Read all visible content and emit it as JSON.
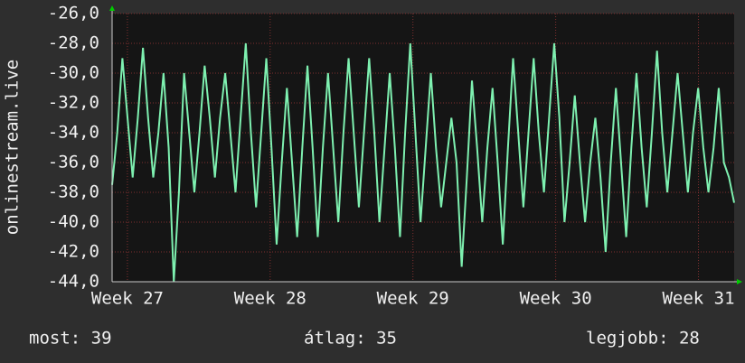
{
  "chart_data": {
    "type": "line",
    "y_label": "onlinestream.live",
    "ylim": [
      -44,
      -26
    ],
    "yticks": [
      {
        "value": -44,
        "label": "-44,0"
      },
      {
        "value": -42,
        "label": "-42,0"
      },
      {
        "value": -40,
        "label": "-40,0"
      },
      {
        "value": -38,
        "label": "-38,0"
      },
      {
        "value": -36,
        "label": "-36,0"
      },
      {
        "value": -34,
        "label": "-34,0"
      },
      {
        "value": -32,
        "label": "-32,0"
      },
      {
        "value": -30,
        "label": "-30,0"
      },
      {
        "value": -28,
        "label": "-28,0"
      },
      {
        "value": -26,
        "label": "-26,0"
      }
    ],
    "xlim": [
      0,
      122
    ],
    "xticks": [
      {
        "value": 3,
        "label": "Week 27"
      },
      {
        "value": 31,
        "label": "Week 28"
      },
      {
        "value": 59,
        "label": "Week 29"
      },
      {
        "value": 87,
        "label": "Week 30"
      },
      {
        "value": 115,
        "label": "Week 31"
      }
    ],
    "grid": true,
    "color": "#7ef0b0",
    "values": [
      -37.5,
      -34,
      -29,
      -33,
      -37,
      -33,
      -28.3,
      -33,
      -37,
      -34,
      -30,
      -35,
      -44,
      -38,
      -30,
      -34,
      -38,
      -34,
      -29.5,
      -33,
      -37,
      -33,
      -30,
      -34,
      -38,
      -33,
      -28,
      -34,
      -39,
      -34,
      -29,
      -35,
      -41.5,
      -36,
      -31,
      -36,
      -41,
      -35,
      -29.5,
      -35,
      -41,
      -35,
      -30,
      -35,
      -40,
      -34,
      -29,
      -34,
      -39,
      -34,
      -29,
      -34,
      -40,
      -35,
      -30,
      -35,
      -41,
      -34,
      -28,
      -34,
      -40,
      -35,
      -30,
      -35,
      -39,
      -36,
      -33,
      -36,
      -43,
      -37,
      -30.5,
      -35,
      -40,
      -35,
      -31,
      -36,
      -41.5,
      -35,
      -29,
      -34,
      -39,
      -34,
      -29,
      -34,
      -38,
      -33,
      -28,
      -33,
      -40,
      -36,
      -31.5,
      -36,
      -40,
      -36,
      -33,
      -37,
      -42,
      -36,
      -31,
      -36,
      -41,
      -35,
      -30,
      -35,
      -39,
      -34,
      -28.5,
      -34,
      -38,
      -34,
      -30,
      -34,
      -38,
      -34,
      -31,
      -35,
      -38,
      -35,
      -31,
      -36,
      -37,
      -38.7
    ],
    "footer": [
      "most: 39",
      "átlag: 35",
      "legjobb: 28"
    ]
  }
}
